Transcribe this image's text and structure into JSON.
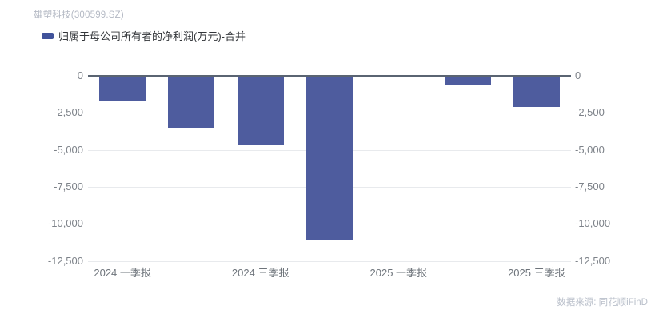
{
  "header": {
    "title": "雄塑科技(300599.SZ)"
  },
  "legend": {
    "label": "归属于母公司所有者的净利润(万元)-合并"
  },
  "source": {
    "label": "数据来源: 同花顺iFinD"
  },
  "colors": {
    "bar": "#4e5c9e",
    "legend_marker": "#41539b",
    "zero_axis": "#5a6472",
    "gridline": "#e8eaed",
    "y_tick_text": "#7d8289",
    "x_tick_text": "#6e747b",
    "title_text": "#b4b9c4",
    "source_text": "#b9bfca"
  },
  "chart_data": {
    "type": "bar",
    "title": "雄塑科技(300599.SZ)",
    "series": [
      {
        "name": "归属于母公司所有者的净利润(万元)-合并",
        "values": [
          -1750,
          -3500,
          -4650,
          -11100,
          null,
          -660,
          -2100
        ]
      }
    ],
    "categories": [
      "2024 一季报",
      "",
      "2024 三季报",
      "",
      "2025 一季报",
      "",
      "2025 三季报"
    ],
    "x_tick_labels_visible": [
      "2024 一季报",
      "2024 三季报",
      "2025 一季报",
      "2025 三季报"
    ],
    "xlabel": "",
    "ylabel": "",
    "ylim": [
      -12500,
      0
    ],
    "y_ticks": [
      0,
      -2500,
      -5000,
      -7500,
      -10000,
      -12500
    ],
    "y_tick_labels": [
      "0",
      "-2,500",
      "-5,000",
      "-7,500",
      "-10,000",
      "-12,500"
    ],
    "grid": true,
    "legend_position": "top-left",
    "y_axis_sides": "both"
  }
}
